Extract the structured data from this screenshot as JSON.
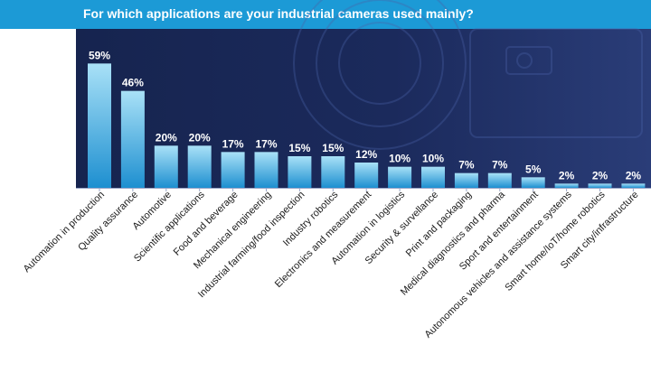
{
  "chart_data": {
    "type": "bar",
    "title": "For which applications are your industrial cameras used mainly?",
    "categories": [
      "Automation in production",
      "Quality assurance",
      "Automotive",
      "Scientific applications",
      "Food and beverage",
      "Mechanical engineering",
      "Industrial farming/food inspection",
      "Industry robotics",
      "Electronics and measurement",
      "Automation in logistics",
      "Security & survellance",
      "Print and packaging",
      "Medical diagnostics and pharma",
      "Sport and entertainment",
      "Autonomous vehicles and assistance systems",
      "Smart home/IoT/home robotics",
      "Smart city/infrastructure"
    ],
    "values": [
      59,
      46,
      20,
      20,
      17,
      17,
      15,
      15,
      12,
      10,
      10,
      7,
      7,
      5,
      2,
      2,
      2
    ],
    "value_labels": [
      "59%",
      "46%",
      "20%",
      "20%",
      "17%",
      "17%",
      "15%",
      "15%",
      "12%",
      "10%",
      "10%",
      "7%",
      "7%",
      "5%",
      "2%",
      "2%",
      "2%"
    ],
    "ylim": [
      0,
      60
    ],
    "grid": false,
    "legend": "none",
    "colors": {
      "title_bar": "#1c9ad6",
      "panel": "#1b2a5c",
      "bar_top": "#a9e1f7",
      "bar_bottom": "#1d8fd0",
      "axis": "#9aa6c8"
    }
  }
}
